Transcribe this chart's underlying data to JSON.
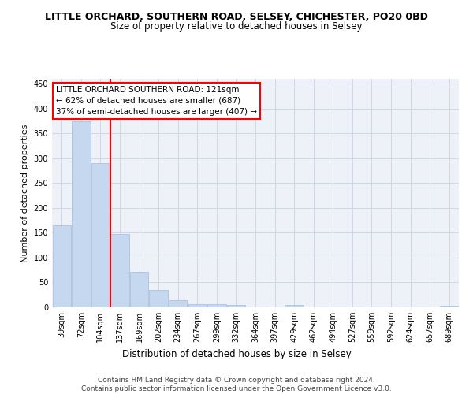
{
  "title": "LITTLE ORCHARD, SOUTHERN ROAD, SELSEY, CHICHESTER, PO20 0BD",
  "subtitle": "Size of property relative to detached houses in Selsey",
  "xlabel": "Distribution of detached houses by size in Selsey",
  "ylabel": "Number of detached properties",
  "categories": [
    "39sqm",
    "72sqm",
    "104sqm",
    "137sqm",
    "169sqm",
    "202sqm",
    "234sqm",
    "267sqm",
    "299sqm",
    "332sqm",
    "364sqm",
    "397sqm",
    "429sqm",
    "462sqm",
    "494sqm",
    "527sqm",
    "559sqm",
    "592sqm",
    "624sqm",
    "657sqm",
    "689sqm"
  ],
  "values": [
    165,
    375,
    290,
    148,
    72,
    35,
    14,
    7,
    6,
    5,
    0,
    0,
    4,
    0,
    0,
    0,
    0,
    0,
    0,
    0,
    3
  ],
  "bar_color": "#c5d8f0",
  "bar_edge_color": "#a0bcd8",
  "grid_color": "#d0d8e8",
  "background_color": "#eef2f8",
  "vline_color": "red",
  "annotation_text": "LITTLE ORCHARD SOUTHERN ROAD: 121sqm\n← 62% of detached houses are smaller (687)\n37% of semi-detached houses are larger (407) →",
  "annotation_fontsize": 7.5,
  "ylim": [
    0,
    460
  ],
  "yticks": [
    0,
    50,
    100,
    150,
    200,
    250,
    300,
    350,
    400,
    450
  ],
  "footer_text": "Contains HM Land Registry data © Crown copyright and database right 2024.\nContains public sector information licensed under the Open Government Licence v3.0.",
  "title_fontsize": 9,
  "subtitle_fontsize": 8.5,
  "xlabel_fontsize": 8.5,
  "ylabel_fontsize": 8,
  "tick_fontsize": 7
}
